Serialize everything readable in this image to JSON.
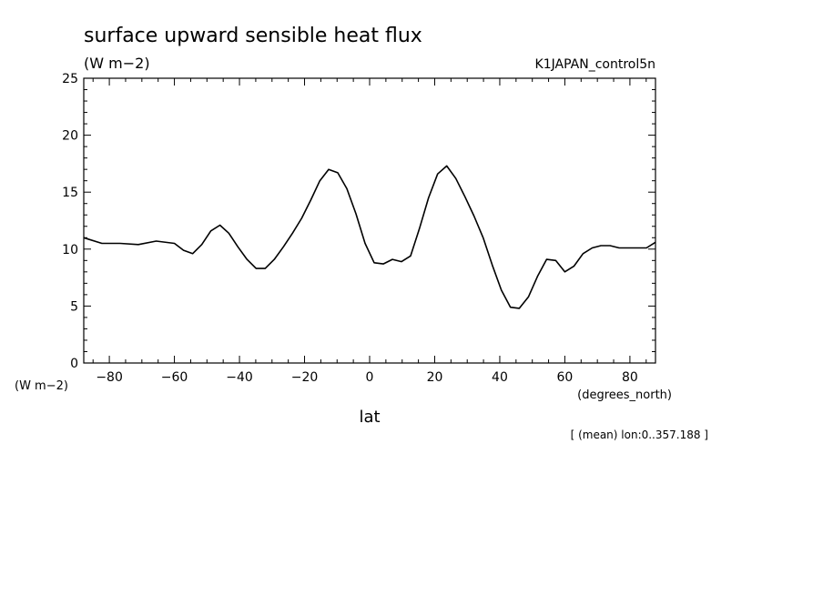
{
  "chart_data": {
    "type": "line",
    "title": "surface upward sensible heat flux",
    "units_label": "(W m−2)",
    "run_label": "K1JAPAN_control5n",
    "ylabel": "(W m−2)",
    "xlabel": "lat",
    "xunits": "(degrees_north)",
    "note": "[ (mean) lon:0..357.188 ]",
    "xlim": [
      -87.86,
      87.86
    ],
    "ylim": [
      0,
      25
    ],
    "xticks": [
      -80,
      -60,
      -40,
      -20,
      0,
      20,
      40,
      60,
      80
    ],
    "xtick_labels": [
      "−80",
      "−60",
      "−40",
      "−20",
      "0",
      "20",
      "40",
      "60",
      "80"
    ],
    "yticks": [
      0,
      5,
      10,
      15,
      20,
      25
    ],
    "ytick_labels": [
      "0",
      "5",
      "10",
      "15",
      "20",
      "25"
    ],
    "grid": false,
    "series": [
      {
        "color": "#000000",
        "x": [
          -87.86,
          -82.3,
          -76.7,
          -71.1,
          -65.6,
          -60.0,
          -57.2,
          -54.4,
          -51.6,
          -48.8,
          -46.0,
          -43.3,
          -40.5,
          -37.7,
          -34.9,
          -32.1,
          -29.3,
          -26.5,
          -23.7,
          -20.9,
          -18.1,
          -15.3,
          -12.6,
          -9.8,
          -7.0,
          -4.2,
          -1.4,
          1.4,
          4.2,
          7.0,
          9.8,
          12.6,
          15.3,
          18.1,
          20.9,
          23.7,
          26.5,
          29.3,
          32.1,
          34.9,
          37.7,
          40.5,
          43.3,
          46.0,
          48.8,
          51.6,
          54.4,
          57.2,
          60.0,
          62.8,
          65.6,
          68.4,
          71.1,
          73.9,
          76.7,
          79.5,
          82.3,
          85.1,
          87.86
        ],
        "y": [
          11.0,
          10.5,
          10.5,
          10.4,
          10.7,
          10.5,
          9.9,
          9.6,
          10.4,
          11.6,
          12.1,
          11.4,
          10.2,
          9.1,
          8.3,
          8.3,
          9.1,
          10.2,
          11.4,
          12.7,
          14.3,
          16.0,
          17.0,
          16.7,
          15.3,
          13.1,
          10.5,
          8.8,
          8.7,
          9.1,
          8.9,
          9.4,
          11.8,
          14.5,
          16.6,
          17.3,
          16.2,
          14.6,
          12.9,
          11.0,
          8.6,
          6.4,
          4.9,
          4.8,
          5.8,
          7.6,
          9.1,
          9.0,
          8.0,
          8.5,
          9.6,
          10.1,
          10.3,
          10.3,
          10.1,
          10.1,
          10.1,
          10.1,
          10.6
        ]
      }
    ]
  }
}
